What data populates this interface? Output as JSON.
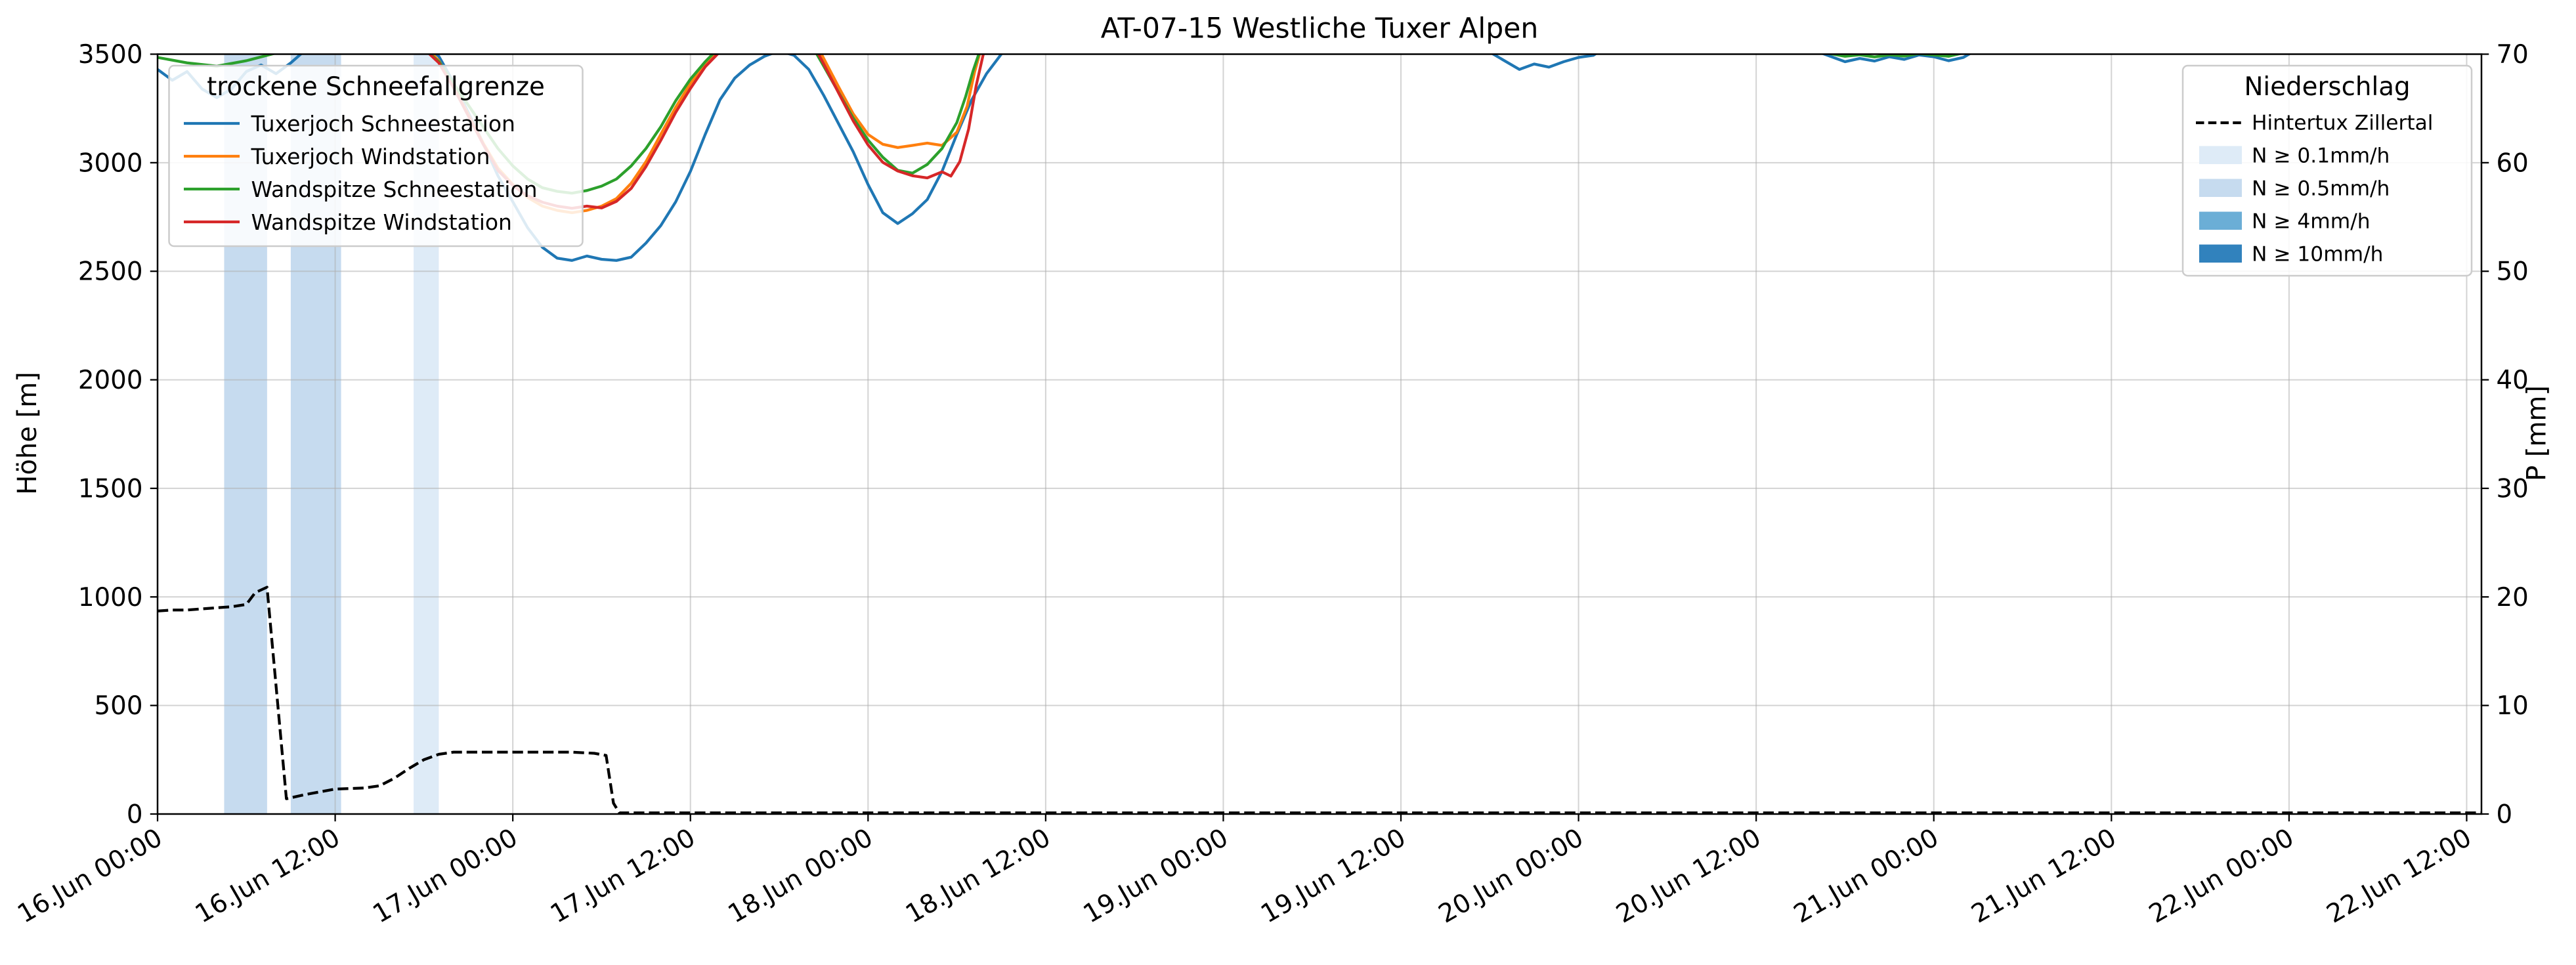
{
  "chart_data": {
    "type": "line",
    "title": "AT-07-15 Westliche Tuxer Alpen",
    "grid": true,
    "x_unit": "hours since 16.Jun 00:00",
    "x_range": [
      0,
      157
    ],
    "x_ticks": [
      {
        "h": 0,
        "label": "16.Jun 00:00"
      },
      {
        "h": 12,
        "label": "16.Jun 12:00"
      },
      {
        "h": 24,
        "label": "17.Jun 00:00"
      },
      {
        "h": 36,
        "label": "17.Jun 12:00"
      },
      {
        "h": 48,
        "label": "18.Jun 00:00"
      },
      {
        "h": 60,
        "label": "18.Jun 12:00"
      },
      {
        "h": 72,
        "label": "19.Jun 00:00"
      },
      {
        "h": 84,
        "label": "19.Jun 12:00"
      },
      {
        "h": 96,
        "label": "20.Jun 00:00"
      },
      {
        "h": 108,
        "label": "20.Jun 12:00"
      },
      {
        "h": 120,
        "label": "21.Jun 00:00"
      },
      {
        "h": 132,
        "label": "21.Jun 12:00"
      },
      {
        "h": 144,
        "label": "22.Jun 00:00"
      },
      {
        "h": 156,
        "label": "22.Jun 12:00"
      }
    ],
    "y_left": {
      "label": "Höhe [m]",
      "range": [
        0,
        3500
      ],
      "ticks": [
        0,
        500,
        1000,
        1500,
        2000,
        2500,
        3000,
        3500
      ]
    },
    "y_right": {
      "label": "P [mm]",
      "range": [
        0,
        70
      ],
      "ticks": [
        0,
        10,
        20,
        30,
        40,
        50,
        60,
        70
      ]
    },
    "series": [
      {
        "name": "Tuxerjoch Schneestation",
        "color": "#1f77b4",
        "axis": "left",
        "points": [
          [
            0,
            3430
          ],
          [
            1,
            3380
          ],
          [
            2,
            3420
          ],
          [
            3,
            3340
          ],
          [
            4,
            3300
          ],
          [
            5,
            3340
          ],
          [
            6,
            3420
          ],
          [
            7,
            3450
          ],
          [
            8,
            3410
          ],
          [
            9,
            3460
          ],
          [
            10,
            3520
          ],
          [
            12,
            3600
          ],
          [
            14,
            3650
          ],
          [
            16,
            3610
          ],
          [
            18,
            3550
          ],
          [
            19,
            3490
          ],
          [
            20,
            3370
          ],
          [
            21,
            3230
          ],
          [
            22,
            3090
          ],
          [
            23,
            2940
          ],
          [
            24,
            2820
          ],
          [
            25,
            2700
          ],
          [
            26,
            2610
          ],
          [
            27,
            2560
          ],
          [
            28,
            2550
          ],
          [
            29,
            2570
          ],
          [
            30,
            2555
          ],
          [
            31,
            2550
          ],
          [
            32,
            2565
          ],
          [
            33,
            2630
          ],
          [
            34,
            2710
          ],
          [
            35,
            2820
          ],
          [
            36,
            2960
          ],
          [
            37,
            3130
          ],
          [
            38,
            3290
          ],
          [
            39,
            3390
          ],
          [
            40,
            3450
          ],
          [
            41,
            3490
          ],
          [
            42,
            3515
          ],
          [
            43,
            3495
          ],
          [
            44,
            3430
          ],
          [
            45,
            3310
          ],
          [
            46,
            3180
          ],
          [
            47,
            3050
          ],
          [
            48,
            2900
          ],
          [
            49,
            2770
          ],
          [
            50,
            2720
          ],
          [
            51,
            2765
          ],
          [
            52,
            2830
          ],
          [
            53,
            2960
          ],
          [
            54,
            3130
          ],
          [
            55,
            3290
          ],
          [
            56,
            3410
          ],
          [
            57,
            3500
          ],
          [
            58,
            3570
          ],
          [
            60,
            3640
          ],
          [
            65,
            3720
          ],
          [
            75,
            3760
          ],
          [
            85,
            3680
          ],
          [
            88,
            3600
          ],
          [
            90,
            3510
          ],
          [
            91,
            3470
          ],
          [
            92,
            3430
          ],
          [
            93,
            3455
          ],
          [
            94,
            3440
          ],
          [
            95,
            3465
          ],
          [
            96,
            3485
          ],
          [
            97,
            3495
          ],
          [
            98,
            3540
          ],
          [
            100,
            3600
          ],
          [
            104,
            3660
          ],
          [
            108,
            3620
          ],
          [
            111,
            3540
          ],
          [
            113,
            3490
          ],
          [
            114,
            3465
          ],
          [
            115,
            3480
          ],
          [
            116,
            3468
          ],
          [
            117,
            3488
          ],
          [
            118,
            3476
          ],
          [
            119,
            3496
          ],
          [
            120,
            3488
          ],
          [
            121,
            3470
          ],
          [
            122,
            3485
          ],
          [
            123,
            3525
          ],
          [
            125,
            3590
          ],
          [
            130,
            3660
          ],
          [
            157,
            3720
          ]
        ]
      },
      {
        "name": "Tuxerjoch Windstation",
        "color": "#ff7f0e",
        "axis": "left",
        "points": [
          [
            0,
            3520
          ],
          [
            4,
            3560
          ],
          [
            8,
            3600
          ],
          [
            12,
            3650
          ],
          [
            16,
            3590
          ],
          [
            18,
            3540
          ],
          [
            19,
            3470
          ],
          [
            20,
            3350
          ],
          [
            21,
            3220
          ],
          [
            22,
            3090
          ],
          [
            23,
            2975
          ],
          [
            24,
            2900
          ],
          [
            25,
            2840
          ],
          [
            26,
            2800
          ],
          [
            27,
            2780
          ],
          [
            28,
            2770
          ],
          [
            29,
            2780
          ],
          [
            30,
            2800
          ],
          [
            31,
            2835
          ],
          [
            32,
            2905
          ],
          [
            33,
            3005
          ],
          [
            34,
            3130
          ],
          [
            35,
            3255
          ],
          [
            36,
            3365
          ],
          [
            37,
            3455
          ],
          [
            38,
            3525
          ],
          [
            39,
            3585
          ],
          [
            40,
            3650
          ],
          [
            42,
            3710
          ],
          [
            44,
            3610
          ],
          [
            45,
            3480
          ],
          [
            46,
            3350
          ],
          [
            47,
            3225
          ],
          [
            48,
            3130
          ],
          [
            49,
            3085
          ],
          [
            50,
            3070
          ],
          [
            51,
            3080
          ],
          [
            52,
            3090
          ],
          [
            53,
            3080
          ],
          [
            54,
            3140
          ],
          [
            54.7,
            3260
          ],
          [
            55.2,
            3420
          ],
          [
            55.7,
            3540
          ],
          [
            56.5,
            3650
          ],
          [
            58,
            3720
          ],
          [
            157,
            3800
          ]
        ]
      },
      {
        "name": "Wandspitze Schneestation",
        "color": "#2ca02c",
        "axis": "left",
        "points": [
          [
            0,
            3485
          ],
          [
            2,
            3460
          ],
          [
            4,
            3445
          ],
          [
            6,
            3470
          ],
          [
            8,
            3505
          ],
          [
            10,
            3545
          ],
          [
            12,
            3585
          ],
          [
            16,
            3560
          ],
          [
            18,
            3525
          ],
          [
            19,
            3465
          ],
          [
            20,
            3365
          ],
          [
            21,
            3265
          ],
          [
            22,
            3165
          ],
          [
            23,
            3065
          ],
          [
            24,
            2985
          ],
          [
            25,
            2925
          ],
          [
            26,
            2885
          ],
          [
            27,
            2868
          ],
          [
            28,
            2860
          ],
          [
            29,
            2872
          ],
          [
            30,
            2892
          ],
          [
            31,
            2925
          ],
          [
            32,
            2985
          ],
          [
            33,
            3065
          ],
          [
            34,
            3165
          ],
          [
            35,
            3285
          ],
          [
            36,
            3385
          ],
          [
            37,
            3465
          ],
          [
            38,
            3535
          ],
          [
            40,
            3625
          ],
          [
            42,
            3685
          ],
          [
            44,
            3565
          ],
          [
            45,
            3445
          ],
          [
            46,
            3325
          ],
          [
            47,
            3205
          ],
          [
            48,
            3105
          ],
          [
            49,
            3025
          ],
          [
            50,
            2965
          ],
          [
            51,
            2952
          ],
          [
            52,
            2992
          ],
          [
            53,
            3065
          ],
          [
            54,
            3185
          ],
          [
            54.6,
            3305
          ],
          [
            55.1,
            3425
          ],
          [
            55.6,
            3525
          ],
          [
            56.5,
            3610
          ],
          [
            60,
            3700
          ],
          [
            90,
            3710
          ],
          [
            100,
            3660
          ],
          [
            108,
            3600
          ],
          [
            111,
            3545
          ],
          [
            113,
            3502
          ],
          [
            114,
            3490
          ],
          [
            115,
            3497
          ],
          [
            116,
            3487
          ],
          [
            117,
            3497
          ],
          [
            118,
            3491
          ],
          [
            119,
            3502
          ],
          [
            120,
            3496
          ],
          [
            121,
            3490
          ],
          [
            122,
            3506
          ],
          [
            123,
            3545
          ],
          [
            127,
            3620
          ],
          [
            157,
            3720
          ]
        ]
      },
      {
        "name": "Wandspitze Windstation",
        "color": "#d62728",
        "axis": "left",
        "points": [
          [
            0,
            3505
          ],
          [
            4,
            3545
          ],
          [
            8,
            3585
          ],
          [
            12,
            3630
          ],
          [
            16,
            3570
          ],
          [
            18,
            3525
          ],
          [
            19,
            3460
          ],
          [
            20,
            3345
          ],
          [
            21,
            3215
          ],
          [
            22,
            3085
          ],
          [
            23,
            2965
          ],
          [
            24,
            2895
          ],
          [
            25,
            2848
          ],
          [
            26,
            2818
          ],
          [
            27,
            2800
          ],
          [
            28,
            2790
          ],
          [
            29,
            2800
          ],
          [
            30,
            2792
          ],
          [
            31,
            2822
          ],
          [
            32,
            2882
          ],
          [
            33,
            2982
          ],
          [
            34,
            3102
          ],
          [
            35,
            3232
          ],
          [
            36,
            3342
          ],
          [
            37,
            3442
          ],
          [
            38,
            3512
          ],
          [
            39,
            3572
          ],
          [
            40,
            3642
          ],
          [
            42,
            3705
          ],
          [
            44,
            3585
          ],
          [
            45,
            3455
          ],
          [
            46,
            3322
          ],
          [
            47,
            3192
          ],
          [
            48,
            3082
          ],
          [
            49,
            3002
          ],
          [
            50,
            2962
          ],
          [
            51,
            2940
          ],
          [
            52,
            2930
          ],
          [
            53,
            2958
          ],
          [
            53.6,
            2938
          ],
          [
            54.2,
            3005
          ],
          [
            54.8,
            3155
          ],
          [
            55.3,
            3355
          ],
          [
            55.8,
            3505
          ],
          [
            56.6,
            3625
          ],
          [
            58,
            3710
          ],
          [
            157,
            3800
          ]
        ]
      }
    ],
    "precip_line": {
      "name": "Hintertux Zillertal",
      "color": "#000000",
      "style": "dashed",
      "axis": "right",
      "points": [
        [
          0,
          18.7
        ],
        [
          1,
          18.8
        ],
        [
          2,
          18.8
        ],
        [
          3,
          18.9
        ],
        [
          4,
          19.0
        ],
        [
          5,
          19.1
        ],
        [
          6,
          19.3
        ],
        [
          6.6,
          20.4
        ],
        [
          7.4,
          20.9
        ],
        [
          8.7,
          1.4
        ],
        [
          10,
          1.8
        ],
        [
          12,
          2.3
        ],
        [
          14,
          2.4
        ],
        [
          15,
          2.6
        ],
        [
          16,
          3.3
        ],
        [
          17,
          4.2
        ],
        [
          18,
          5.0
        ],
        [
          19,
          5.5
        ],
        [
          20,
          5.7
        ],
        [
          24,
          5.7
        ],
        [
          28,
          5.7
        ],
        [
          29.5,
          5.6
        ],
        [
          30.3,
          5.4
        ],
        [
          30.8,
          1.0
        ],
        [
          31.2,
          0.1
        ],
        [
          40,
          0.1
        ],
        [
          60,
          0.1
        ],
        [
          80,
          0.1
        ],
        [
          100,
          0.1
        ],
        [
          120,
          0.1
        ],
        [
          140,
          0.1
        ],
        [
          157,
          0.1
        ]
      ]
    },
    "precip_spans": [
      {
        "start": 4.5,
        "end": 7.4,
        "level": "0.5"
      },
      {
        "start": 9.0,
        "end": 12.4,
        "level": "0.5"
      },
      {
        "start": 17.3,
        "end": 19.0,
        "level": "0.1"
      }
    ],
    "level_colors": {
      "0.1": "#deebf7",
      "0.5": "#c6dbef",
      "4": "#6baed6",
      "10": "#3182bd"
    }
  },
  "legend_left": {
    "title": "trockene Schneefallgrenze",
    "items": [
      {
        "label": "Tuxerjoch Schneestation",
        "color": "#1f77b4"
      },
      {
        "label": "Tuxerjoch Windstation",
        "color": "#ff7f0e"
      },
      {
        "label": "Wandspitze Schneestation",
        "color": "#2ca02c"
      },
      {
        "label": "Wandspitze Windstation",
        "color": "#d62728"
      }
    ]
  },
  "legend_right": {
    "title": "Niederschlag",
    "dashed_item": {
      "label": "Hintertux Zillertal",
      "color": "#000000"
    },
    "patch_items": [
      {
        "label": "N ≥ 0.1mm/h",
        "color": "#deebf7"
      },
      {
        "label": "N ≥ 0.5mm/h",
        "color": "#c6dbef"
      },
      {
        "label": "N ≥ 4mm/h",
        "color": "#6baed6"
      },
      {
        "label": "N ≥ 10mm/h",
        "color": "#3182bd"
      }
    ]
  }
}
